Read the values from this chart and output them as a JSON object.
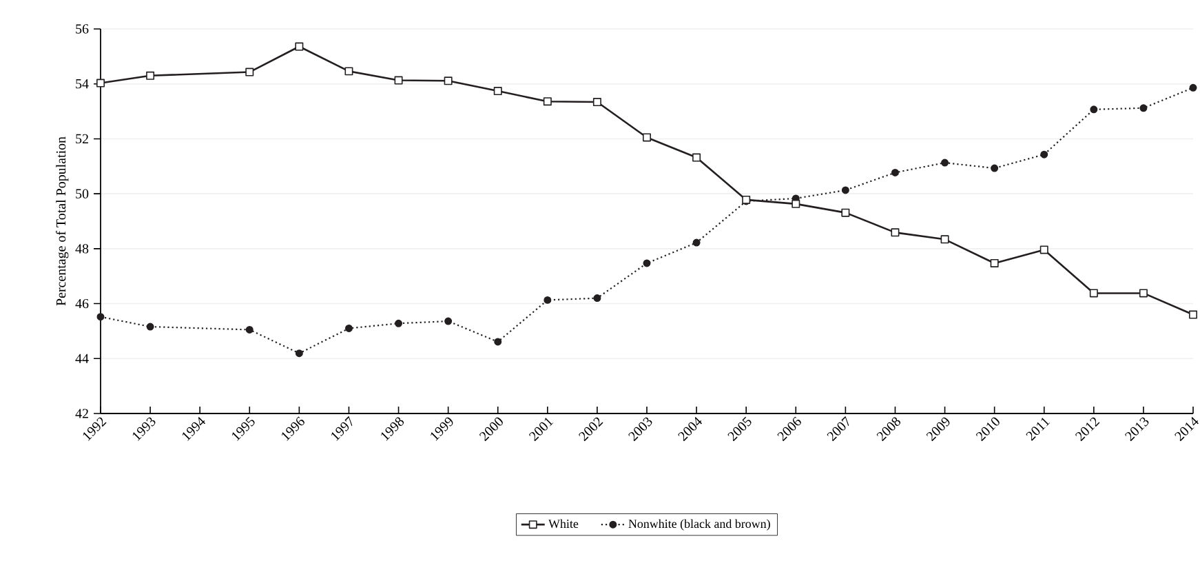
{
  "chart_data": {
    "type": "line",
    "ylabel": "Percentage of Total Population",
    "x": [
      1992,
      1993,
      1995,
      1996,
      1997,
      1998,
      1999,
      2000,
      2001,
      2002,
      2003,
      2004,
      2005,
      2006,
      2007,
      2008,
      2009,
      2010,
      2011,
      2012,
      2013,
      2014
    ],
    "series": [
      {
        "name": "White",
        "color": "#231f20",
        "marker": "square",
        "line_style": "solid",
        "values": [
          54.03,
          54.3,
          54.43,
          55.36,
          54.46,
          54.13,
          54.11,
          53.74,
          53.36,
          53.34,
          52.05,
          51.32,
          49.78,
          49.63,
          49.31,
          48.59,
          48.34,
          47.47,
          47.96,
          46.38,
          46.38,
          45.6
        ]
      },
      {
        "name": "Nonwhite (black and brown)",
        "color": "#231f20",
        "marker": "circle",
        "line_style": "dotted",
        "values": [
          45.52,
          45.16,
          45.05,
          44.19,
          45.1,
          45.28,
          45.36,
          44.61,
          46.13,
          46.2,
          47.47,
          48.22,
          49.73,
          49.83,
          50.13,
          50.77,
          51.13,
          50.93,
          51.43,
          53.07,
          53.12,
          53.86
        ]
      }
    ],
    "xlim": [
      1992,
      2014
    ],
    "xticks": [
      1992,
      1993,
      1994,
      1995,
      1996,
      1997,
      1998,
      1999,
      2000,
      2001,
      2002,
      2003,
      2004,
      2005,
      2006,
      2007,
      2008,
      2009,
      2010,
      2011,
      2012,
      2013,
      2014
    ],
    "ylim": [
      42,
      56
    ],
    "yticks": [
      42,
      44,
      46,
      48,
      50,
      52,
      54,
      56
    ],
    "grid": "y",
    "legend": "bottom"
  }
}
